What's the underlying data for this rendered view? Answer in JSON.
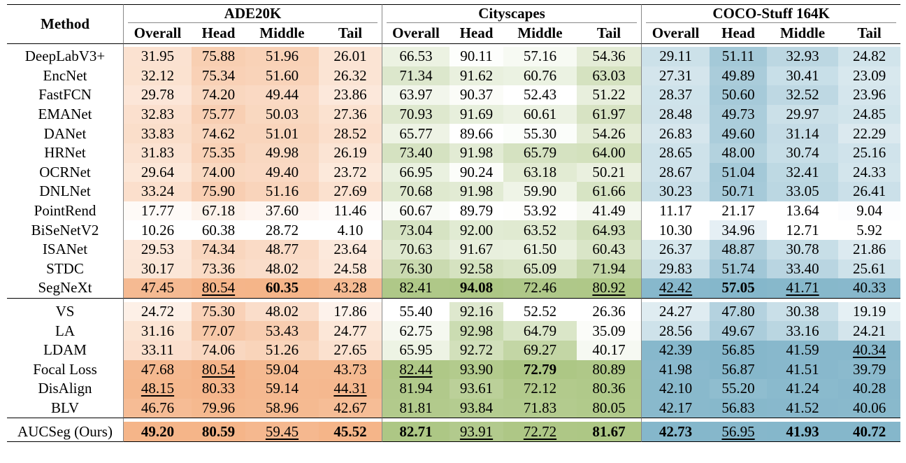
{
  "table": {
    "method_header": "Method",
    "datasets": [
      "ADE20K",
      "Cityscapes",
      "COCO-Stuff 164K"
    ],
    "sub_headers": [
      "Overall",
      "Head",
      "Middle",
      "Tail"
    ],
    "groups": [
      [
        {
          "method": "DeepLabV3+",
          "v": [
            "31.95",
            "75.88",
            "51.96",
            "26.01",
            "66.53",
            "90.11",
            "57.16",
            "54.36",
            "29.11",
            "51.11",
            "32.93",
            "24.82"
          ]
        },
        {
          "method": "EncNet",
          "v": [
            "32.12",
            "75.34",
            "51.60",
            "26.32",
            "71.34",
            "91.62",
            "60.76",
            "63.03",
            "27.31",
            "49.89",
            "30.41",
            "23.09"
          ]
        },
        {
          "method": "FastFCN",
          "v": [
            "29.78",
            "74.20",
            "49.44",
            "23.86",
            "63.97",
            "90.37",
            "52.43",
            "51.22",
            "28.37",
            "50.60",
            "32.52",
            "23.96"
          ]
        },
        {
          "method": "EMANet",
          "v": [
            "32.83",
            "75.77",
            "50.03",
            "27.36",
            "70.93",
            "91.69",
            "60.61",
            "61.97",
            "28.48",
            "49.73",
            "29.97",
            "24.85"
          ]
        },
        {
          "method": "DANet",
          "v": [
            "33.83",
            "74.62",
            "51.01",
            "28.52",
            "65.77",
            "89.66",
            "55.30",
            "54.26",
            "26.83",
            "49.60",
            "31.14",
            "22.29"
          ]
        },
        {
          "method": "HRNet",
          "v": [
            "31.83",
            "75.35",
            "49.98",
            "26.19",
            "73.40",
            "91.98",
            "65.79",
            "64.00",
            "28.65",
            "48.00",
            "30.74",
            "25.16"
          ]
        },
        {
          "method": "OCRNet",
          "v": [
            "29.64",
            "74.00",
            "49.40",
            "23.72",
            "66.95",
            "90.24",
            "63.18",
            "50.21",
            "28.67",
            "51.04",
            "32.41",
            "24.33"
          ]
        },
        {
          "method": "DNLNet",
          "v": [
            "33.24",
            "75.90",
            "51.16",
            "27.69",
            "70.68",
            "91.98",
            "59.90",
            "61.66",
            "30.23",
            "50.71",
            "33.05",
            "26.41"
          ]
        },
        {
          "method": "PointRend",
          "v": [
            "17.77",
            "67.18",
            "37.60",
            "11.46",
            "60.67",
            "89.79",
            "53.92",
            "41.49",
            "11.17",
            "21.17",
            "13.64",
            "9.04"
          ]
        },
        {
          "method": "BiSeNetV2",
          "v": [
            "10.26",
            "60.38",
            "28.72",
            "4.10",
            "73.04",
            "92.00",
            "63.52",
            "64.93",
            "10.30",
            "34.96",
            "12.71",
            "5.92"
          ]
        },
        {
          "method": "ISANet",
          "v": [
            "29.53",
            "74.34",
            "48.77",
            "23.64",
            "70.63",
            "91.67",
            "61.50",
            "60.43",
            "26.37",
            "48.87",
            "30.78",
            "21.86"
          ]
        },
        {
          "method": "STDC",
          "v": [
            "30.17",
            "73.36",
            "48.02",
            "24.58",
            "76.30",
            "92.58",
            "65.09",
            "71.94",
            "29.83",
            "51.74",
            "33.40",
            "25.61"
          ]
        },
        {
          "method": "SegNeXt",
          "v": [
            "47.45",
            "80.54",
            "60.35",
            "43.28",
            "82.41",
            "94.08",
            "72.46",
            "80.92",
            "42.42",
            "57.05",
            "41.71",
            "40.33"
          ],
          "bold": [
            2,
            5,
            9
          ],
          "under": [
            1,
            7,
            8,
            10
          ]
        }
      ],
      [
        {
          "method": "VS",
          "v": [
            "24.72",
            "75.30",
            "48.02",
            "17.86",
            "55.40",
            "92.16",
            "52.52",
            "26.36",
            "24.27",
            "47.80",
            "30.38",
            "19.19"
          ]
        },
        {
          "method": "LA",
          "v": [
            "31.16",
            "77.07",
            "53.43",
            "24.77",
            "62.75",
            "92.98",
            "64.79",
            "35.09",
            "28.56",
            "49.67",
            "33.16",
            "24.21"
          ]
        },
        {
          "method": "LDAM",
          "v": [
            "33.11",
            "74.06",
            "51.26",
            "27.65",
            "65.95",
            "92.72",
            "69.27",
            "40.17",
            "42.39",
            "56.85",
            "41.59",
            "40.34"
          ],
          "under": [
            11
          ]
        },
        {
          "method": "Focal Loss",
          "v": [
            "47.68",
            "80.54",
            "59.04",
            "43.73",
            "82.44",
            "93.90",
            "72.79",
            "80.89",
            "41.98",
            "56.87",
            "41.51",
            "39.79"
          ],
          "bold": [
            6
          ],
          "under": [
            1,
            4
          ]
        },
        {
          "method": "DisAlign",
          "v": [
            "48.15",
            "80.33",
            "59.14",
            "44.31",
            "81.94",
            "93.61",
            "72.12",
            "80.36",
            "42.10",
            "55.20",
            "41.24",
            "40.28"
          ],
          "under": [
            0,
            3
          ]
        },
        {
          "method": "BLV",
          "v": [
            "46.76",
            "79.96",
            "58.96",
            "42.67",
            "81.81",
            "93.84",
            "71.83",
            "80.05",
            "42.17",
            "56.83",
            "41.52",
            "40.06"
          ]
        }
      ],
      [
        {
          "method": "AUCSeg (Ours)",
          "v": [
            "49.20",
            "80.59",
            "59.45",
            "45.52",
            "82.71",
            "93.91",
            "72.72",
            "81.67",
            "42.73",
            "56.95",
            "41.93",
            "40.72"
          ],
          "bold": [
            0,
            1,
            3,
            4,
            7,
            8,
            10,
            11
          ],
          "under": [
            2,
            5,
            6,
            9
          ]
        }
      ]
    ]
  },
  "colors": {
    "ade_base": "#f4b183",
    "city_base": "#a9c47f",
    "coco_base": "#7fb3c8"
  }
}
